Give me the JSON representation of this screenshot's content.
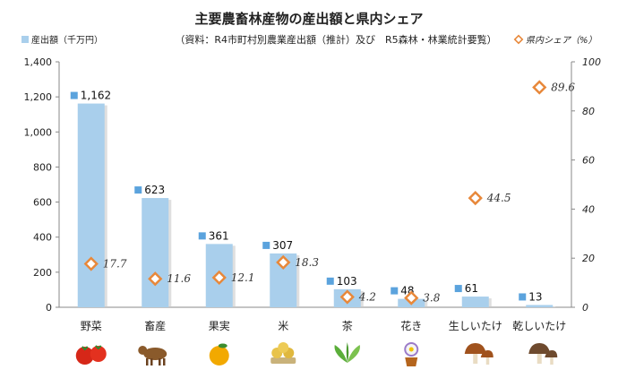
{
  "chart_data": {
    "type": "bar",
    "title": "主要農畜林産物の産出額と県内シェア",
    "subtitle": "（資料：R4市町村別農業産出額（推計）及び　R5森林・林業統計要覧）",
    "categories": [
      "野菜",
      "畜産",
      "果実",
      "米",
      "茶",
      "花き",
      "生しいたけ",
      "乾しいたけ"
    ],
    "icons": [
      "tomato-icon",
      "cow-icon",
      "orange-icon",
      "rice-icon",
      "tea-leaf-icon",
      "flower-pot-icon",
      "shiitake-fresh-icon",
      "shiitake-dried-icon"
    ],
    "series": [
      {
        "name": "産出額（千万円）",
        "values": [
          1162,
          623,
          361,
          307,
          103,
          48,
          61,
          13
        ],
        "labels": [
          "1,162",
          "623",
          "361",
          "307",
          "103",
          "48",
          "61",
          "13"
        ],
        "color": "#A9CFEC",
        "axis": "left"
      },
      {
        "name": "県内シェア（%）",
        "values": [
          17.7,
          11.6,
          12.1,
          18.3,
          4.2,
          3.8,
          44.5,
          89.6
        ],
        "labels": [
          "17.7",
          "11.6",
          "12.1",
          "18.3",
          "4.2",
          "3.8",
          "44.5",
          "89.6"
        ],
        "color": "#E8883A",
        "axis": "right"
      }
    ],
    "ylim": [
      0,
      1400
    ],
    "yticks": [
      "0",
      "200",
      "400",
      "600",
      "800",
      "1,000",
      "1,200",
      "1,400"
    ],
    "y2lim": [
      0,
      100
    ],
    "y2ticks": [
      "0",
      "20",
      "40",
      "60",
      "80",
      "100"
    ],
    "legend": "top"
  }
}
